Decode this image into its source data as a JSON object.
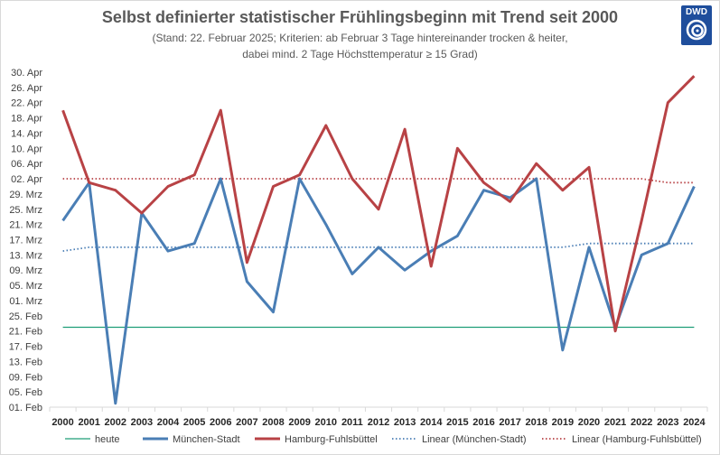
{
  "header": {
    "title": "Selbst definierter statistischer Frühlingsbeginn mit Trend seit 2000",
    "subtitle_line1": "(Stand: 22. Februar 2025; Kriterien: ab Februar 3 Tage hintereinander trocken & heiter,",
    "subtitle_line2": "dabei mind. 2 Tage Höchsttemperatur ≥ 15 Grad)",
    "logo_text": "DWD"
  },
  "chart_data": {
    "type": "line",
    "title": "Selbst definierter statistischer Frühlingsbeginn mit Trend seit 2000",
    "x": [
      "2000",
      "2001",
      "2002",
      "2003",
      "2004",
      "2005",
      "2006",
      "2007",
      "2008",
      "2009",
      "2010",
      "2011",
      "2012",
      "2013",
      "2014",
      "2015",
      "2016",
      "2017",
      "2018",
      "2019",
      "2020",
      "2021",
      "2022",
      "2023",
      "2024"
    ],
    "y_ticks": [
      "30. Apr",
      "26. Apr",
      "22. Apr",
      "18. Apr",
      "14. Apr",
      "10. Apr",
      "06. Apr",
      "02. Apr",
      "29. Mrz",
      "25. Mrz",
      "21. Mrz",
      "17. Mrz",
      "13. Mrz",
      "09. Mrz",
      "05. Mrz",
      "01. Mrz",
      "25. Feb",
      "21. Feb",
      "17. Feb",
      "13. Feb",
      "09. Feb",
      "05. Feb",
      "01. Feb"
    ],
    "ylim": [
      "01. Feb",
      "30. Apr"
    ],
    "grid": false,
    "legend_position": "bottom",
    "colors": {
      "heute": "#1e9e78",
      "muenchen": "#4a7eb5",
      "hamburg": "#b84245",
      "trend_muenchen": "#4a7eb5",
      "trend_hamburg": "#b84245",
      "axis": "#d9d9d9"
    },
    "series": [
      {
        "name": "heute",
        "key": "heute",
        "style": "solid-thin",
        "values": [
          "22. Feb",
          "22. Feb",
          "22. Feb",
          "22. Feb",
          "22. Feb",
          "22. Feb",
          "22. Feb",
          "22. Feb",
          "22. Feb",
          "22. Feb",
          "22. Feb",
          "22. Feb",
          "22. Feb",
          "22. Feb",
          "22. Feb",
          "22. Feb",
          "22. Feb",
          "22. Feb",
          "22. Feb",
          "22. Feb",
          "22. Feb",
          "22. Feb",
          "22. Feb",
          "22. Feb",
          "22. Feb"
        ]
      },
      {
        "name": "München-Stadt",
        "key": "muenchen",
        "style": "solid",
        "values": [
          "22. Mrz",
          "01. Apr",
          "02. Feb",
          "24. Mrz",
          "14. Mrz",
          "16. Mrz",
          "02. Apr",
          "06. Mrz",
          "26. Feb",
          "02. Apr",
          "21. Mrz",
          "08. Mrz",
          "15. Mrz",
          "09. Mrz",
          "14. Mrz",
          "18. Mrz",
          "30. Mrz",
          "28. Mrz",
          "02. Apr",
          "16. Feb",
          "15. Mrz",
          "22. Feb",
          "13. Mrz",
          "16. Mrz",
          "31. Mrz"
        ]
      },
      {
        "name": "Hamburg-Fuhlsbüttel",
        "key": "hamburg",
        "style": "solid",
        "values": [
          "20. Apr",
          "01. Apr",
          "30. Mrz",
          "24. Mrz",
          "31. Mrz",
          "03. Apr",
          "20. Apr",
          "11. Mrz",
          "31. Mrz",
          "03. Apr",
          "16. Apr",
          "02. Apr",
          "25. Mrz",
          "15. Apr",
          "10. Mrz",
          "10. Apr",
          "01. Apr",
          "27. Mrz",
          "06. Apr",
          "30. Mrz",
          "05. Apr",
          "21. Feb",
          "22. Mrz",
          "22. Apr",
          "29. Apr"
        ]
      },
      {
        "name": "Linear (München-Stadt)",
        "key": "trend_muenchen",
        "style": "dotted",
        "values": [
          "14. Mrz",
          "15. Mrz",
          "15. Mrz",
          "15. Mrz",
          "15. Mrz",
          "15. Mrz",
          "15. Mrz",
          "15. Mrz",
          "15. Mrz",
          "15. Mrz",
          "15. Mrz",
          "15. Mrz",
          "15. Mrz",
          "15. Mrz",
          "15. Mrz",
          "15. Mrz",
          "15. Mrz",
          "15. Mrz",
          "15. Mrz",
          "15. Mrz",
          "16. Mrz",
          "16. Mrz",
          "16. Mrz",
          "16. Mrz",
          "16. Mrz"
        ]
      },
      {
        "name": "Linear (Hamburg-Fuhlsbüttel)",
        "key": "trend_hamburg",
        "style": "dotted",
        "values": [
          "02. Apr",
          "02. Apr",
          "02. Apr",
          "02. Apr",
          "02. Apr",
          "02. Apr",
          "02. Apr",
          "02. Apr",
          "02. Apr",
          "02. Apr",
          "02. Apr",
          "02. Apr",
          "02. Apr",
          "02. Apr",
          "02. Apr",
          "02. Apr",
          "02. Apr",
          "02. Apr",
          "02. Apr",
          "02. Apr",
          "02. Apr",
          "02. Apr",
          "02. Apr",
          "01. Apr",
          "01. Apr"
        ]
      }
    ]
  }
}
